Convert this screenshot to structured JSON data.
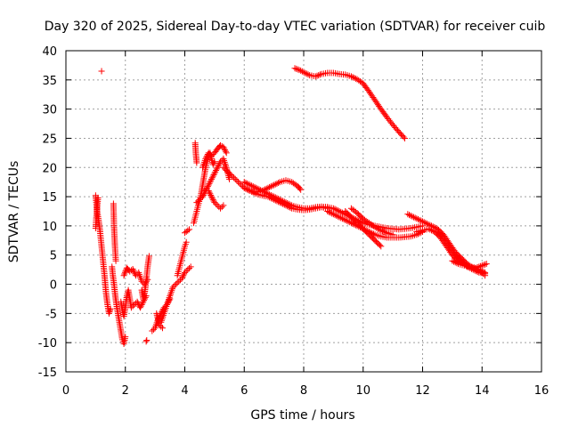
{
  "chart_data": {
    "type": "scatter",
    "title": "Day 320 of 2025, Sidereal Day-to-day VTEC variation (SDTVAR) for receiver cuib",
    "xlabel": "GPS time / hours",
    "ylabel": "SDTVAR / TECUs",
    "xlim": [
      0,
      16
    ],
    "ylim": [
      -15,
      40
    ],
    "xticks": [
      0,
      2,
      4,
      6,
      8,
      10,
      12,
      14,
      16
    ],
    "yticks": [
      -15,
      -10,
      -5,
      0,
      5,
      10,
      15,
      20,
      25,
      30,
      35,
      40
    ],
    "grid": true,
    "marker": "+",
    "color": "#ff0000",
    "series": [
      {
        "name": "SDTVAR",
        "tracks": [
          {
            "x": [
              1.0,
              1.05,
              1.1,
              1.15,
              1.2,
              1.25,
              1.3,
              1.35,
              1.4,
              1.45,
              1.5
            ],
            "y": [
              15.2,
              12.5,
              11.0,
              9.0,
              6.5,
              4.0,
              1.5,
              -1.5,
              -3.5,
              -5.0,
              -4.2
            ]
          },
          {
            "x": [
              1.0,
              1.02,
              1.08
            ],
            "y": [
              9.6,
              11.2,
              14.8
            ]
          },
          {
            "x": [
              1.6,
              1.62,
              1.65,
              1.68
            ],
            "y": [
              13.8,
              9.8,
              6.5,
              4.0
            ]
          },
          {
            "x": [
              1.55,
              1.58,
              1.62,
              1.65,
              1.7,
              1.75,
              1.8,
              1.85,
              1.9,
              1.95,
              2.0
            ],
            "y": [
              3.0,
              1.5,
              0.0,
              -1.5,
              -3.5,
              -5.0,
              -6.5,
              -8.0,
              -9.5,
              -10.2,
              -9.0
            ]
          },
          {
            "x": [
              1.85,
              1.9,
              1.95,
              2.0,
              2.05,
              2.1,
              2.15,
              2.2,
              2.3,
              2.4,
              2.5,
              2.6,
              2.7
            ],
            "y": [
              -3.0,
              -4.5,
              -5.5,
              -4.0,
              -2.0,
              -1.0,
              -2.5,
              -4.0,
              -3.5,
              -3.0,
              -4.0,
              -3.0,
              -2.0
            ]
          },
          {
            "x": [
              1.95,
              2.05,
              2.15,
              2.25,
              2.35,
              2.45,
              2.55,
              2.65,
              2.75
            ],
            "y": [
              1.5,
              2.8,
              2.2,
              2.6,
              1.5,
              2.0,
              0.5,
              0.0,
              0.8
            ]
          },
          {
            "x": [
              2.55,
              2.6,
              2.65,
              2.7,
              2.75,
              2.8
            ],
            "y": [
              -1.0,
              -2.5,
              -1.5,
              0.5,
              3.0,
              4.8
            ]
          },
          {
            "x": [
              2.7,
              2.72
            ],
            "y": [
              -9.8,
              -9.6
            ]
          },
          {
            "x": [
              2.9,
              3.0,
              3.1,
              3.2,
              3.3,
              3.4,
              3.5
            ],
            "y": [
              -8.0,
              -7.5,
              -6.0,
              -5.0,
              -4.0,
              -3.5,
              -2.5
            ]
          },
          {
            "x": [
              3.05,
              3.15,
              3.25
            ],
            "y": [
              -5.0,
              -7.0,
              -7.5
            ]
          },
          {
            "x": [
              3.2,
              3.3,
              3.4,
              3.5,
              3.6,
              3.7,
              3.8,
              3.9,
              4.0,
              4.1,
              4.2
            ],
            "y": [
              -6.5,
              -5.0,
              -3.5,
              -2.0,
              -0.5,
              0.0,
              0.5,
              1.0,
              2.0,
              2.5,
              3.0
            ]
          },
          {
            "x": [
              3.75,
              3.8,
              3.85,
              3.9,
              3.95,
              4.0,
              4.05
            ],
            "y": [
              1.5,
              2.5,
              3.5,
              4.5,
              5.5,
              6.5,
              7.2
            ]
          },
          {
            "x": [
              4.0,
              4.05,
              4.1,
              4.15
            ],
            "y": [
              8.8,
              9.0,
              9.2,
              9.4
            ]
          },
          {
            "x": [
              4.3,
              4.35,
              4.4,
              4.45,
              4.5,
              4.55,
              4.6,
              4.65,
              4.7,
              4.75,
              4.8,
              4.85,
              4.9,
              4.95,
              5.0
            ],
            "y": [
              10.5,
              11.5,
              12.5,
              13.5,
              14.5,
              15.5,
              17.0,
              18.5,
              20.0,
              21.0,
              22.0,
              22.5,
              21.5,
              20.5,
              21.0
            ]
          },
          {
            "x": [
              4.35,
              4.37,
              4.4
            ],
            "y": [
              24.2,
              22.5,
              20.8
            ]
          },
          {
            "x": [
              4.4,
              4.5,
              4.6,
              4.7,
              4.8,
              4.9,
              5.0,
              5.1,
              5.2,
              5.3,
              5.4,
              5.5
            ],
            "y": [
              14.0,
              14.5,
              15.0,
              16.0,
              17.0,
              18.0,
              19.0,
              20.0,
              21.0,
              21.5,
              20.0,
              18.0
            ]
          },
          {
            "x": [
              4.6,
              4.7,
              4.8,
              4.9,
              5.0,
              5.1,
              5.2,
              5.3,
              5.4
            ],
            "y": [
              20.0,
              21.5,
              22.5,
              22.0,
              22.5,
              23.2,
              23.8,
              23.5,
              22.5
            ]
          },
          {
            "x": [
              4.8,
              4.9,
              5.0,
              5.1,
              5.2,
              5.3
            ],
            "y": [
              16.0,
              15.0,
              14.0,
              13.5,
              13.0,
              13.5
            ]
          },
          {
            "x": [
              5.3,
              5.4,
              5.5,
              5.6,
              5.7,
              5.8,
              5.9,
              6.0,
              6.2,
              6.4,
              6.6,
              6.8,
              7.0,
              7.2,
              7.4,
              7.6,
              7.8,
              7.9
            ],
            "y": [
              20.0,
              19.5,
              19.0,
              18.5,
              18.0,
              17.5,
              17.0,
              16.5,
              16.0,
              15.8,
              16.0,
              16.5,
              17.0,
              17.5,
              17.8,
              17.5,
              16.8,
              16.2
            ]
          },
          {
            "x": [
              6.0,
              6.2,
              6.4,
              6.6,
              6.8,
              7.0,
              7.2,
              7.4,
              7.6,
              7.8,
              8.0,
              8.2,
              8.4,
              8.6,
              8.8
            ],
            "y": [
              17.5,
              17.0,
              16.5,
              16.0,
              15.5,
              15.0,
              14.5,
              14.0,
              13.5,
              13.2,
              13.0,
              13.0,
              13.2,
              13.3,
              13.2
            ]
          },
          {
            "x": [
              6.0,
              6.2,
              6.4,
              6.6,
              6.8,
              7.0,
              7.2,
              7.4,
              7.6,
              7.8,
              8.0,
              8.2,
              8.4,
              8.6,
              8.8
            ],
            "y": [
              16.5,
              16.0,
              15.5,
              15.2,
              15.0,
              14.5,
              14.0,
              13.5,
              13.0,
              12.8,
              12.7,
              12.8,
              13.0,
              13.2,
              13.0
            ]
          },
          {
            "x": [
              8.8,
              9.0,
              9.2,
              9.4,
              9.6,
              9.8,
              10.0,
              10.2,
              10.4,
              10.6,
              10.8,
              11.0,
              11.2,
              11.4,
              11.6,
              11.8,
              12.0
            ],
            "y": [
              13.2,
              13.0,
              12.5,
              12.0,
              11.5,
              11.0,
              10.5,
              10.2,
              10.0,
              9.8,
              9.6,
              9.5,
              9.4,
              9.5,
              9.6,
              9.8,
              10.0
            ]
          },
          {
            "x": [
              8.8,
              9.0,
              9.2,
              9.4,
              9.6,
              9.8,
              10.0,
              10.2,
              10.4,
              10.6,
              10.8,
              11.0,
              11.2,
              11.4,
              11.6,
              11.8,
              12.0
            ],
            "y": [
              12.5,
              12.0,
              11.5,
              11.0,
              10.5,
              10.0,
              9.5,
              9.0,
              8.5,
              8.2,
              8.0,
              8.0,
              8.0,
              8.1,
              8.2,
              8.5,
              9.0
            ]
          },
          {
            "x": [
              9.4,
              9.6,
              9.8,
              10.0,
              10.2,
              10.4,
              10.6
            ],
            "y": [
              12.5,
              11.5,
              10.5,
              9.5,
              8.5,
              7.5,
              6.5
            ]
          },
          {
            "x": [
              9.6,
              9.8,
              10.0,
              10.2,
              10.4,
              10.6,
              10.8,
              11.0
            ],
            "y": [
              13.0,
              12.2,
              11.2,
              10.5,
              9.8,
              9.2,
              8.8,
              8.5
            ]
          },
          {
            "x": [
              11.5,
              11.7,
              11.9,
              12.1,
              12.3,
              12.5,
              12.7,
              12.9,
              13.1,
              13.3,
              13.5,
              13.7,
              13.9,
              14.1
            ],
            "y": [
              12.0,
              11.5,
              11.0,
              10.5,
              10.0,
              9.5,
              8.5,
              7.0,
              5.5,
              4.5,
              3.5,
              2.8,
              2.5,
              2.0
            ]
          },
          {
            "x": [
              11.8,
              12.0,
              12.2,
              12.4,
              12.6,
              12.8,
              13.0,
              13.2,
              13.4,
              13.6,
              13.8,
              14.0,
              14.1
            ],
            "y": [
              9.0,
              9.2,
              9.5,
              9.0,
              8.0,
              6.5,
              5.0,
              4.0,
              3.5,
              3.0,
              2.5,
              2.0,
              1.5
            ]
          },
          {
            "x": [
              12.5,
              12.7,
              12.9,
              13.1,
              13.3,
              13.5,
              13.7,
              13.9,
              14.1
            ],
            "y": [
              9.0,
              8.0,
              6.5,
              5.0,
              4.0,
              3.0,
              2.5,
              2.0,
              1.8
            ]
          },
          {
            "x": [
              13.0,
              13.2,
              13.4,
              13.6,
              13.8,
              14.0,
              14.15
            ],
            "y": [
              4.0,
              3.5,
              3.2,
              3.0,
              2.8,
              3.2,
              3.5
            ]
          },
          {
            "x": [
              7.7,
              7.8,
              7.9,
              8.0,
              8.2,
              8.4,
              8.6,
              8.8,
              9.0,
              9.2,
              9.4,
              9.6,
              9.8,
              10.0,
              10.2,
              10.4,
              10.6,
              10.8,
              11.0,
              11.2,
              11.4
            ],
            "y": [
              37.0,
              36.8,
              36.6,
              36.3,
              35.8,
              35.6,
              36.0,
              36.2,
              36.2,
              36.0,
              35.9,
              35.6,
              35.1,
              34.4,
              33.0,
              31.5,
              30.0,
              28.6,
              27.3,
              26.1,
              25.0
            ]
          },
          {
            "x": [
              1.2
            ],
            "y": [
              36.5
            ]
          }
        ]
      }
    ]
  }
}
